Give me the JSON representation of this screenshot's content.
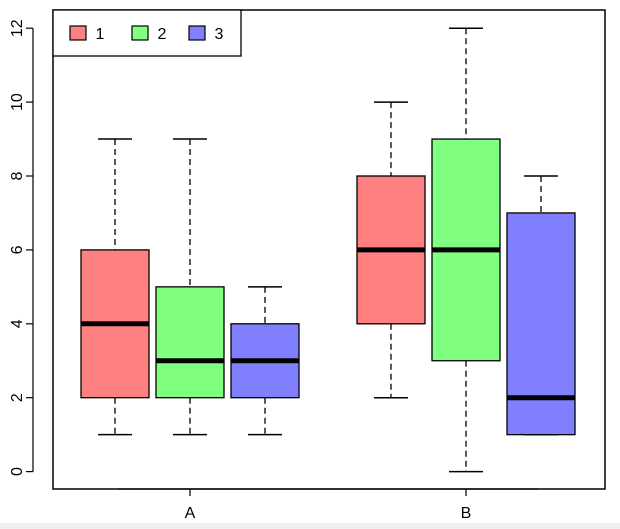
{
  "chart_data": {
    "type": "boxplot",
    "title": "",
    "xlabel": "",
    "ylabel": "",
    "categories": [
      "A",
      "B"
    ],
    "ylim": [
      -0.45,
      12.45
    ],
    "yticks": [
      0,
      2,
      4,
      6,
      8,
      10,
      12
    ],
    "legend": {
      "position": "top-left",
      "frame": true
    },
    "series": [
      {
        "name": "1",
        "color": "#ff8080",
        "boxes": [
          {
            "category": "A",
            "min": 1,
            "q1": 2,
            "median": 4,
            "q3": 6,
            "max": 9
          },
          {
            "category": "B",
            "min": 2,
            "q1": 4,
            "median": 6,
            "q3": 8,
            "max": 10
          }
        ]
      },
      {
        "name": "2",
        "color": "#80ff80",
        "boxes": [
          {
            "category": "A",
            "min": 1,
            "q1": 2,
            "median": 3,
            "q3": 5,
            "max": 9
          },
          {
            "category": "B",
            "min": 0,
            "q1": 3,
            "median": 6,
            "q3": 9,
            "max": 12
          }
        ]
      },
      {
        "name": "3",
        "color": "#8080ff",
        "boxes": [
          {
            "category": "A",
            "min": 1,
            "q1": 2,
            "median": 3,
            "q3": 4,
            "max": 5
          },
          {
            "category": "B",
            "min": 1,
            "q1": 1,
            "median": 2,
            "q3": 7,
            "max": 8
          }
        ]
      }
    ]
  }
}
